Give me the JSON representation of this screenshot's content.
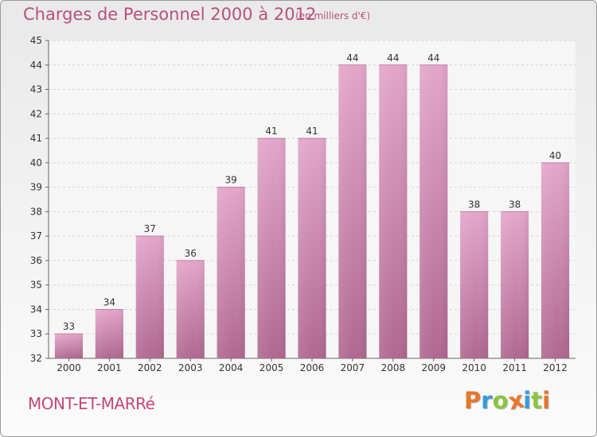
{
  "header": {
    "title": "Charges de Personnel 2000 à 2012",
    "subtitle": "(en milliers d'€)"
  },
  "footer": {
    "commune": "MONT-ET-MARRé",
    "logo_text": "Proxiti",
    "logo_letters": [
      {
        "ch": "P",
        "color": "#e8762c"
      },
      {
        "ch": "r",
        "color": "#3a9ad9"
      },
      {
        "ch": "o",
        "color": "#8cc63f"
      },
      {
        "ch": "x",
        "color": "#e8762c"
      },
      {
        "ch": "i",
        "color": "#3a9ad9"
      },
      {
        "ch": "t",
        "color": "#8cc63f"
      },
      {
        "ch": "i",
        "color": "#e8762c"
      }
    ]
  },
  "colors": {
    "bar_top": "#e3a6c9",
    "bar_bottom": "#b0688f",
    "title": "#b8507e"
  },
  "chart_data": {
    "type": "bar",
    "title": "Charges de Personnel 2000 à 2012",
    "subtitle": "(en milliers d'€)",
    "categories": [
      "2000",
      "2001",
      "2002",
      "2003",
      "2004",
      "2005",
      "2006",
      "2007",
      "2008",
      "2009",
      "2010",
      "2011",
      "2012"
    ],
    "values": [
      33,
      34,
      37,
      36,
      39,
      41,
      41,
      44,
      44,
      44,
      38,
      38,
      40
    ],
    "ylim": [
      32,
      45
    ],
    "yticks": [
      32,
      33,
      34,
      35,
      36,
      37,
      38,
      39,
      40,
      41,
      42,
      43,
      44,
      45
    ],
    "xlabel": "",
    "ylabel": "",
    "grid": true,
    "data_labels": true
  }
}
